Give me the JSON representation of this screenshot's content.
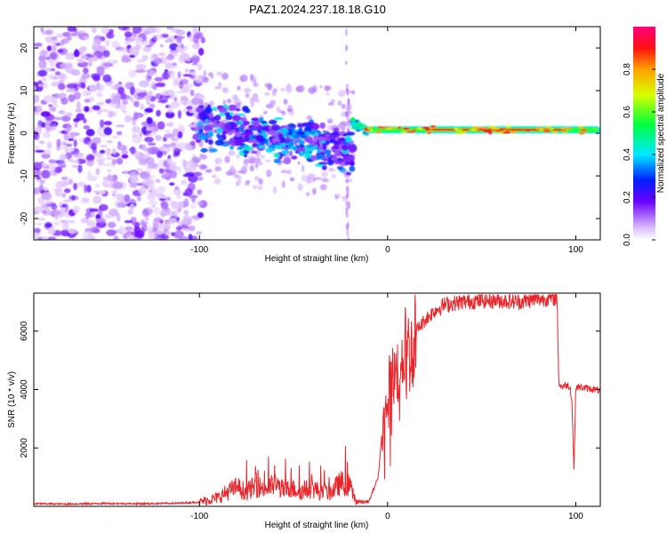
{
  "title": "PAZ1.2024.237.18.18.G10",
  "chart_data": [
    {
      "type": "heatmap",
      "xlabel": "Height of straight line (km)",
      "ylabel": "Frequency (Hz)",
      "xlim": [
        -188,
        113
      ],
      "ylim": [
        -25,
        25
      ],
      "xticks": [
        -100,
        0,
        100
      ],
      "yticks": [
        -20,
        -10,
        0,
        10,
        20
      ],
      "colorbar": {
        "label": "Normalized spectral amplitude",
        "ticks": [
          "0.0",
          "0.2",
          "0.4",
          "0.6",
          "0.8"
        ],
        "range": [
          0,
          1
        ],
        "colormap": "white-violet-blue-cyan-green-yellow-orange-red-magenta"
      },
      "segments": [
        {
          "region": "noise",
          "x_range": [
            -188,
            -100
          ],
          "f_range": [
            -25,
            25
          ],
          "amplitude": "0.05-0.3"
        },
        {
          "region": "spread",
          "x_range": [
            -100,
            -20
          ],
          "f_center_start": 2,
          "f_center_end": -4,
          "amplitude": "0.1-0.5"
        },
        {
          "region": "carrier",
          "x_range": [
            -15,
            113
          ],
          "f_center": 0.8,
          "amplitude": "0.6-1.0"
        }
      ]
    },
    {
      "type": "line",
      "xlabel": "Height of straight line (km)",
      "ylabel": "SNR (10 * v/v)",
      "xlim": [
        -188,
        113
      ],
      "ylim": [
        0,
        7300
      ],
      "xticks": [
        -100,
        0,
        100
      ],
      "yticks": [
        2000,
        4000,
        6000
      ],
      "color": "#e8252a",
      "x": [
        -188,
        -170,
        -150,
        -130,
        -110,
        -100,
        -90,
        -85,
        -80,
        -75,
        -70,
        -65,
        -60,
        -55,
        -50,
        -45,
        -40,
        -35,
        -30,
        -25,
        -20,
        -17,
        -15,
        -10,
        -5,
        -3,
        -1,
        0,
        2,
        5,
        8,
        10,
        12,
        15,
        20,
        25,
        30,
        40,
        50,
        60,
        70,
        80,
        90,
        91,
        92,
        95,
        97,
        98,
        99,
        100,
        105,
        110,
        113
      ],
      "y": [
        90,
        80,
        100,
        90,
        110,
        150,
        300,
        500,
        650,
        500,
        700,
        600,
        750,
        550,
        600,
        500,
        650,
        450,
        500,
        800,
        700,
        200,
        150,
        150,
        1000,
        2500,
        3200,
        4000,
        4200,
        4600,
        5300,
        5500,
        5200,
        6000,
        6400,
        6700,
        6900,
        7000,
        7050,
        7050,
        7000,
        7100,
        7150,
        4200,
        4100,
        4150,
        4100,
        3500,
        1200,
        4100,
        4050,
        4000,
        3950
      ]
    }
  ]
}
